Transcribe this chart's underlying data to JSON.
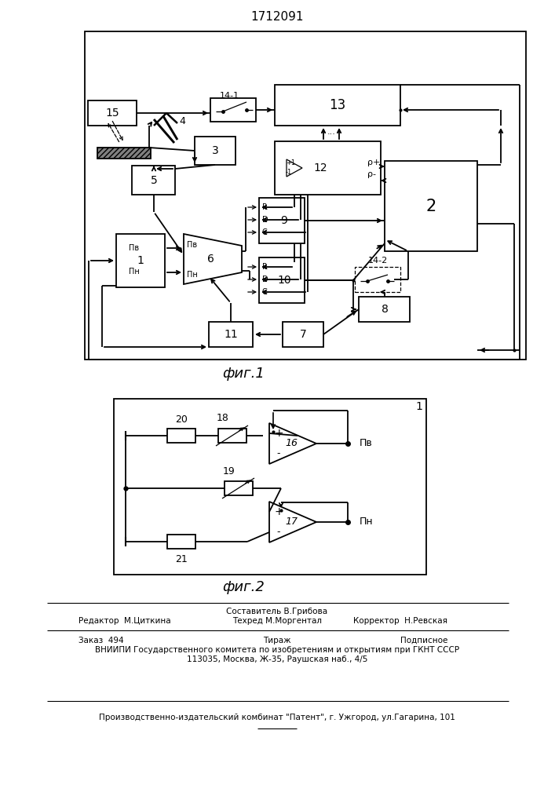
{
  "title": "1712091",
  "fig1_label": "фиг.1",
  "fig2_label": "фиг.2",
  "footer": {
    "line1_center": "Составитель В.Грибова",
    "line2_left": "Редактор  М.Циткина",
    "line2_center": "Техред М.Моргентал",
    "line2_right": "Корректор  Н.Ревская",
    "line3_left": "Заказ  494",
    "line3_center": "Тираж",
    "line3_right": "Подписное",
    "line4": "ВНИИПИ Государственного комитета по изобретениям и открытиям при ГКНТ СССР",
    "line5": "113035, Москва, Ж-35, Раушская наб., 4/5",
    "line6": "Производственно-издательский комбинат \"Патент\", г. Ужгород, ул.Гагарина, 101"
  }
}
